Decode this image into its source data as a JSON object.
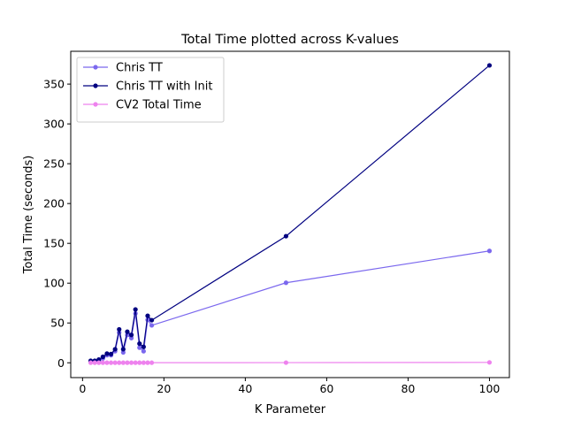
{
  "chart_data": {
    "type": "line",
    "title": "Total Time plotted across K-values",
    "xlabel": "K Parameter",
    "ylabel": "Total Time (seconds)",
    "xlim": [
      -2.9,
      104.9
    ],
    "ylim": [
      -18.6,
      391.2
    ],
    "x_ticks": [
      0,
      20,
      40,
      60,
      80,
      100
    ],
    "y_ticks": [
      0,
      50,
      100,
      150,
      200,
      250,
      300,
      350
    ],
    "grid": false,
    "legend_position": "top-left",
    "x": [
      2,
      3,
      4,
      5,
      6,
      7,
      8,
      9,
      10,
      11,
      12,
      13,
      14,
      15,
      16,
      17,
      50,
      100
    ],
    "series": [
      {
        "name": "Chris TT",
        "color": "#7b68ee",
        "marker": "circle",
        "values": [
          1.5,
          1.8,
          2.5,
          5.5,
          9.5,
          9.5,
          14.5,
          38,
          13,
          35,
          31,
          62,
          19,
          14.5,
          54,
          47,
          100.5,
          140.5
        ]
      },
      {
        "name": "Chris TT with Init",
        "color": "#000080",
        "marker": "circle",
        "values": [
          2.5,
          2.5,
          4,
          7.5,
          11.5,
          11,
          17,
          42,
          17,
          39,
          35,
          67,
          24,
          20,
          59,
          53.5,
          159,
          373.5
        ]
      },
      {
        "name": "CV2 Total Time",
        "color": "#ee82ee",
        "marker": "circle",
        "values": [
          0.1,
          0.1,
          0.1,
          0.1,
          0.1,
          0.1,
          0.1,
          0.1,
          0.1,
          0.1,
          0.1,
          0.1,
          0.1,
          0.1,
          0.1,
          0.1,
          0.2,
          0.5
        ]
      }
    ]
  }
}
